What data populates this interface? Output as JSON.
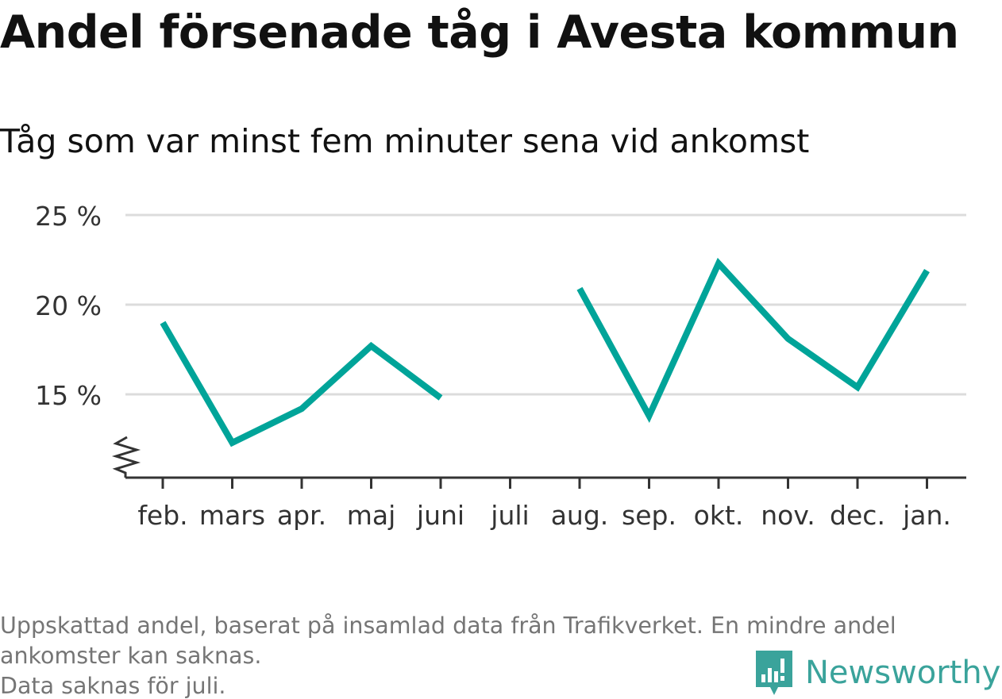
{
  "title": "Andel försenade tåg i Avesta kommun",
  "subtitle": "Tåg som var minst fem minuter sena vid ankomst",
  "footnotes": [
    "Uppskattad andel, baserat på insamlad data från Trafikverket. En mindre andel",
    "ankomster kan saknas.",
    "Data saknas för juli."
  ],
  "brand": {
    "name": "Newsworthy",
    "icon": "newsworthy-logo-icon"
  },
  "colors": {
    "line": "#00a499",
    "grid": "#dcdcdc",
    "axis": "#333333",
    "brand": "#3aa39b"
  },
  "chart_data": {
    "type": "line",
    "title": "Andel försenade tåg i Avesta kommun",
    "subtitle": "Tåg som var minst fem minuter sena vid ankomst",
    "categories": [
      "feb.",
      "mars",
      "apr.",
      "maj",
      "juni",
      "juli",
      "aug.",
      "sep.",
      "okt.",
      "nov.",
      "dec.",
      "jan."
    ],
    "series": [
      {
        "values": [
          19.0,
          12.3,
          14.2,
          17.7,
          14.8,
          null,
          20.9,
          13.8,
          22.3,
          18.1,
          15.4,
          21.9
        ]
      }
    ],
    "yticks": [
      15,
      20,
      25
    ],
    "ytick_labels": [
      "15 %",
      "20 %",
      "25 %"
    ],
    "ylim": [
      10.5,
      25
    ],
    "y_axis_break": true,
    "grid": true,
    "legend": "none",
    "xlabel": "",
    "ylabel": ""
  }
}
